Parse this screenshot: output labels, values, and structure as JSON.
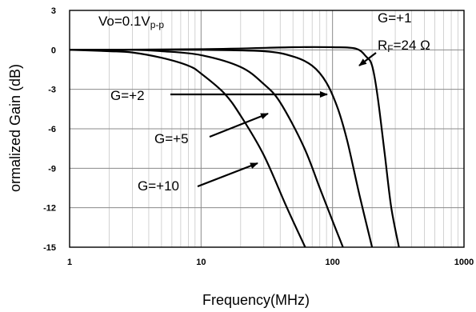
{
  "chart_data": {
    "type": "line",
    "xscale": "log",
    "xlim": [
      1,
      1000
    ],
    "ylim": [
      -15,
      3
    ],
    "grid": true,
    "xlabel": "Frequency(MHz)",
    "ylabel": "ormalized Gain (dB)",
    "x_ticks": [
      "1",
      "10",
      "100",
      "1000"
    ],
    "y_ticks": [
      "3",
      "0",
      "-3",
      "-6",
      "-9",
      "-12",
      "-15"
    ],
    "annotations": {
      "conditions": {
        "main": "Vo=0.1V",
        "sub": "p-p"
      },
      "g1": "G=+1",
      "rf": {
        "main": "R",
        "sub": "F",
        "rest": "=24 Ω"
      },
      "g2": "G=+2",
      "g5": "G=+5",
      "g10": "G=+10"
    },
    "series": [
      {
        "name": "G=+1",
        "x": [
          1,
          10,
          50,
          100,
          150,
          180,
          200,
          220,
          250,
          280,
          320
        ],
        "y": [
          0,
          0.05,
          0.2,
          0.2,
          0.1,
          -0.5,
          -1.2,
          -3.5,
          -8,
          -12,
          -15
        ]
      },
      {
        "name": "G=+2",
        "x": [
          1,
          5,
          10,
          30,
          50,
          70,
          90,
          110,
          130,
          160,
          200
        ],
        "y": [
          0,
          0,
          0,
          -0.1,
          -0.5,
          -1.2,
          -2.5,
          -4.5,
          -7,
          -11,
          -15
        ]
      },
      {
        "name": "G=+5",
        "x": [
          1,
          3,
          5,
          10,
          20,
          30,
          40,
          60,
          80,
          100,
          120
        ],
        "y": [
          0,
          0,
          -0.1,
          -0.4,
          -1.3,
          -2.6,
          -4,
          -7.3,
          -10.5,
          -13,
          -15
        ]
      },
      {
        "name": "G=+10",
        "x": [
          1,
          2,
          3,
          5,
          8,
          10,
          15,
          20,
          30,
          45,
          62
        ],
        "y": [
          0,
          -0.1,
          -0.2,
          -0.6,
          -1.2,
          -1.8,
          -3.3,
          -5,
          -8,
          -12,
          -15
        ]
      }
    ]
  }
}
